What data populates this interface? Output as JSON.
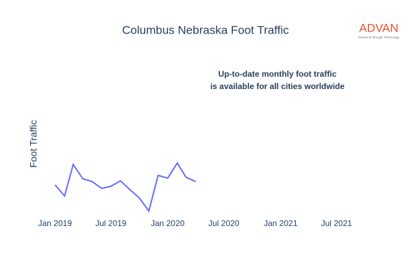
{
  "chart_data": {
    "type": "line",
    "title": "Columbus Nebraska Foot Traffic",
    "y_axis_label": "Foot Traffic",
    "annotation": [
      "Up-to-date monthly foot traffic",
      "is available for all cities worldwide"
    ],
    "logo": {
      "name": "ADVAN",
      "tagline": "Research through Technology"
    },
    "x": [
      "2019-01",
      "2019-02",
      "2019-03",
      "2019-04",
      "2019-05",
      "2019-06",
      "2019-07",
      "2019-08",
      "2019-09",
      "2019-10",
      "2019-11",
      "2019-12",
      "2020-01",
      "2020-02",
      "2020-03",
      "2020-04"
    ],
    "series": [
      {
        "name": "Foot Traffic",
        "color": "#636efa",
        "values": [
          20,
          12.9,
          33.3,
          24,
          22.2,
          17.8,
          19.1,
          22.7,
          16.9,
          11.6,
          3.1,
          26.2,
          24.4,
          34.2,
          24.9,
          22.2
        ]
      }
    ],
    "xlim": [
      "2018-11-28",
      "2021-09-25"
    ],
    "ylim": [
      0,
      100
    ],
    "xticks": [
      {
        "value": "2019-01-01",
        "label": "Jan 2019"
      },
      {
        "value": "2019-07-01",
        "label": "Jul 2019"
      },
      {
        "value": "2020-01-01",
        "label": "Jan 2020"
      },
      {
        "value": "2020-07-01",
        "label": "Jul 2020"
      },
      {
        "value": "2021-01-01",
        "label": "Jan 2021"
      },
      {
        "value": "2021-07-01",
        "label": "Jul 2021"
      }
    ],
    "grid": false
  }
}
